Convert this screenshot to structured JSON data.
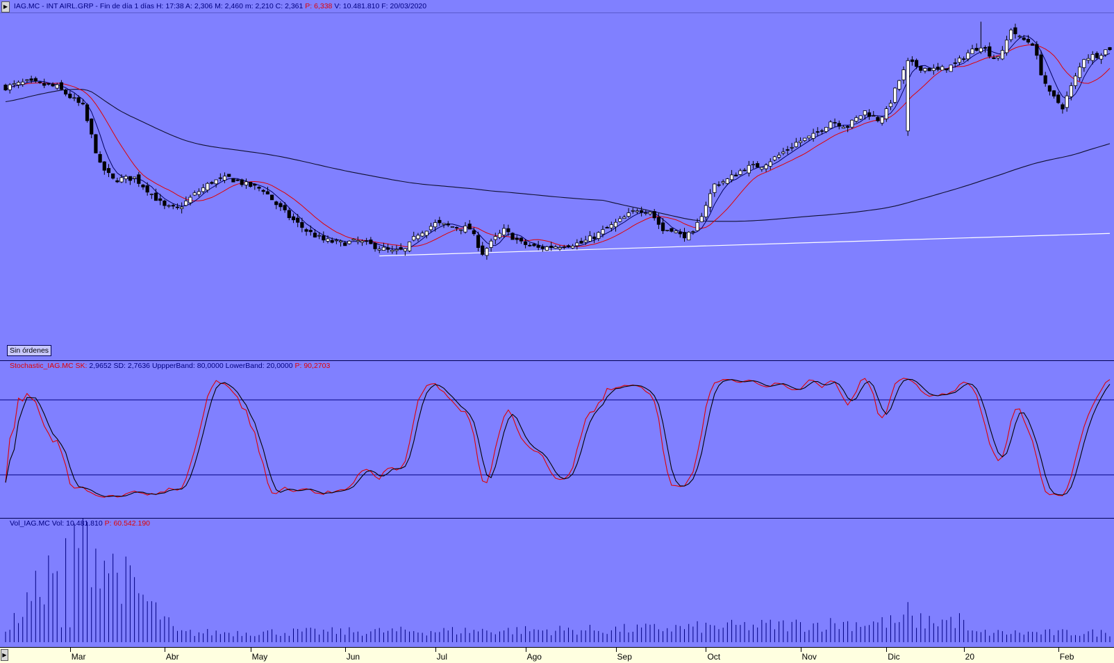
{
  "header": {
    "symbol": "IAG.MC - INT AIRL.GRP",
    "period": "Fin de día 1 días",
    "fields": [
      {
        "label": "H:",
        "value": "17:38"
      },
      {
        "label": "A:",
        "value": "2,306"
      },
      {
        "label": "M:",
        "value": "2,460"
      },
      {
        "label": "m:",
        "value": "2,210"
      },
      {
        "label": "C:",
        "value": "2,361"
      }
    ],
    "p_label": "P:",
    "p_value": "6,338",
    "v_label": "V:",
    "v_value": "10.481.810",
    "f_label": "F:",
    "f_value": "20/03/2020"
  },
  "orders_button": "Sin órdenes",
  "stochastic": {
    "name": "Stochastic_IAG.MC",
    "sk_label": "SK:",
    "sk_value": "2,9652",
    "sd_label": "SD:",
    "sd_value": "2,7636",
    "upper_label": "UppperBand:",
    "upper_value": "80,0000",
    "lower_label": "LowerBand:",
    "lower_value": "20,0000",
    "p_label": "P:",
    "p_value": "90,2703"
  },
  "volume": {
    "name": "Vol_IAG.MC",
    "vol_label": "Vol:",
    "vol_value": "10.481.810",
    "p_label": "P:",
    "p_value": "60.542.190"
  },
  "time_axis": {
    "months": [
      "Mar",
      "Abr",
      "May",
      "Jun",
      "Jul",
      "Ago",
      "Sep",
      "Oct",
      "Nov",
      "Dic",
      "20",
      "Feb"
    ]
  },
  "colors": {
    "background": "#8080ff",
    "candle": "#000000",
    "ma_fast": "#000060",
    "ma_mid": "#e00000",
    "ma_slow": "#101030",
    "trendline": "#ffffff",
    "stoch_k": "#e00000",
    "stoch_d": "#000000",
    "bands": "#000080",
    "volume": "#000080"
  },
  "chart_data": [
    {
      "type": "candlestick",
      "series": [
        {
          "name": "close",
          "anchors": [
            [
              0,
              6.55
            ],
            [
              5,
              6.6
            ],
            [
              12,
              6.55
            ],
            [
              18,
              6.35
            ],
            [
              22,
              5.75
            ],
            [
              25,
              5.6
            ],
            [
              30,
              5.62
            ],
            [
              33,
              5.5
            ],
            [
              37,
              5.32
            ],
            [
              40,
              5.3
            ],
            [
              44,
              5.45
            ],
            [
              48,
              5.58
            ],
            [
              52,
              5.62
            ],
            [
              56,
              5.55
            ],
            [
              60,
              5.5
            ],
            [
              63,
              5.35
            ],
            [
              66,
              5.22
            ],
            [
              70,
              5.08
            ],
            [
              74,
              4.98
            ],
            [
              78,
              4.95
            ],
            [
              82,
              4.97
            ],
            [
              86,
              4.92
            ],
            [
              90,
              4.86
            ],
            [
              93,
              4.88
            ],
            [
              96,
              5.05
            ],
            [
              100,
              5.15
            ],
            [
              104,
              5.12
            ],
            [
              108,
              5.1
            ],
            [
              111,
              4.85
            ],
            [
              114,
              5.0
            ],
            [
              116,
              5.08
            ],
            [
              120,
              4.95
            ],
            [
              124,
              4.9
            ],
            [
              128,
              4.92
            ],
            [
              131,
              4.94
            ],
            [
              134,
              4.95
            ],
            [
              137,
              5.02
            ],
            [
              140,
              5.1
            ],
            [
              143,
              5.18
            ],
            [
              147,
              5.3
            ],
            [
              150,
              5.28
            ],
            [
              153,
              5.08
            ],
            [
              155,
              5.1
            ],
            [
              157,
              5.03
            ],
            [
              160,
              5.04
            ],
            [
              163,
              5.35
            ],
            [
              165,
              5.55
            ],
            [
              168,
              5.6
            ],
            [
              172,
              5.72
            ],
            [
              176,
              5.75
            ],
            [
              180,
              5.85
            ],
            [
              184,
              5.98
            ],
            [
              188,
              6.05
            ],
            [
              192,
              6.2
            ],
            [
              196,
              6.15
            ],
            [
              200,
              6.3
            ],
            [
              203,
              6.22
            ],
            [
              205,
              6.3
            ],
            [
              208,
              6.62
            ],
            [
              210,
              6.8
            ],
            [
              213,
              6.75
            ],
            [
              217,
              6.72
            ],
            [
              221,
              6.78
            ],
            [
              224,
              6.9
            ],
            [
              227,
              6.98
            ],
            [
              230,
              6.85
            ],
            [
              232,
              6.9
            ],
            [
              234,
              7.15
            ],
            [
              236,
              7.05
            ],
            [
              239,
              7.0
            ],
            [
              241,
              6.7
            ],
            [
              243,
              6.48
            ],
            [
              246,
              6.35
            ],
            [
              248,
              6.55
            ],
            [
              251,
              6.85
            ],
            [
              254,
              6.88
            ],
            [
              257,
              6.95
            ]
          ]
        },
        {
          "name": "volume",
          "anchors": [
            [
              0,
              0.3
            ],
            [
              17,
              3.5
            ],
            [
              40,
              0.3
            ],
            [
              140,
              0.4
            ],
            [
              223,
              0.7
            ],
            [
              224,
              0.3
            ],
            [
              273,
              0.3
            ]
          ]
        }
      ],
      "overlays": [
        "MA fast",
        "MA mid",
        "MA slow",
        "trendline"
      ],
      "x_axis": [
        "Mar",
        "Abr",
        "May",
        "Jun",
        "Jul",
        "Ago",
        "Sep",
        "Oct",
        "Nov",
        "Dic",
        "20",
        "Feb"
      ]
    },
    {
      "type": "line",
      "series": [
        {
          "name": "SK"
        },
        {
          "name": "SD"
        }
      ],
      "ylim": [
        0,
        100
      ],
      "bands": [
        20,
        80
      ],
      "x_axis": [
        "Mar",
        "Abr",
        "May",
        "Jun",
        "Jul",
        "Ago",
        "Sep",
        "Oct",
        "Nov",
        "Dic",
        "20",
        "Feb"
      ]
    },
    {
      "type": "bar",
      "series": [
        {
          "name": "Vol"
        }
      ],
      "x_axis": [
        "Mar",
        "Abr",
        "May",
        "Jun",
        "Jul",
        "Ago",
        "Sep",
        "Oct",
        "Nov",
        "Dic",
        "20",
        "Feb"
      ]
    }
  ]
}
